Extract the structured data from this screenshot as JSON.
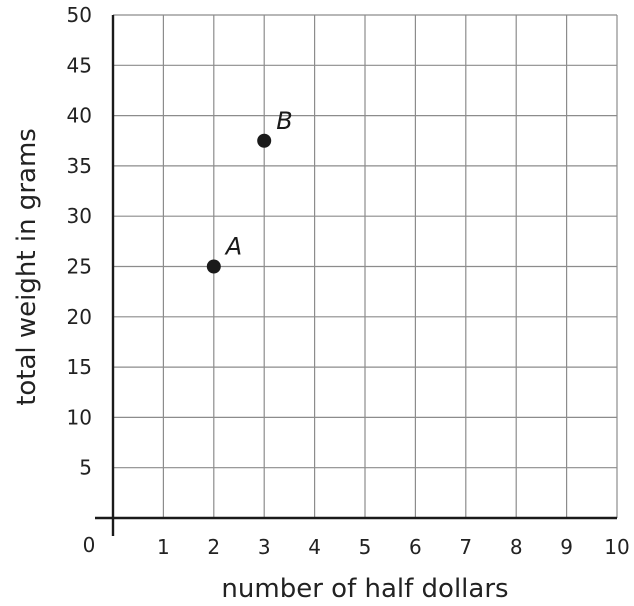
{
  "chart_data": {
    "type": "scatter",
    "title": "",
    "xlabel": "number of half dollars",
    "ylabel": "total weight in grams",
    "xlim": [
      0,
      10
    ],
    "ylim": [
      0,
      50
    ],
    "x_ticks": [
      0,
      1,
      2,
      3,
      4,
      5,
      6,
      7,
      8,
      9,
      10
    ],
    "y_ticks": [
      5,
      10,
      15,
      20,
      25,
      30,
      35,
      40,
      45,
      50
    ],
    "origin_label": "0",
    "grid": true,
    "points": [
      {
        "label": "A",
        "x": 2,
        "y": 25
      },
      {
        "label": "B",
        "x": 3,
        "y": 37.5
      }
    ],
    "colors": {
      "point": "#1a1a1a",
      "grid": "#8c8c8c",
      "axis": "#1a1a1a"
    }
  }
}
